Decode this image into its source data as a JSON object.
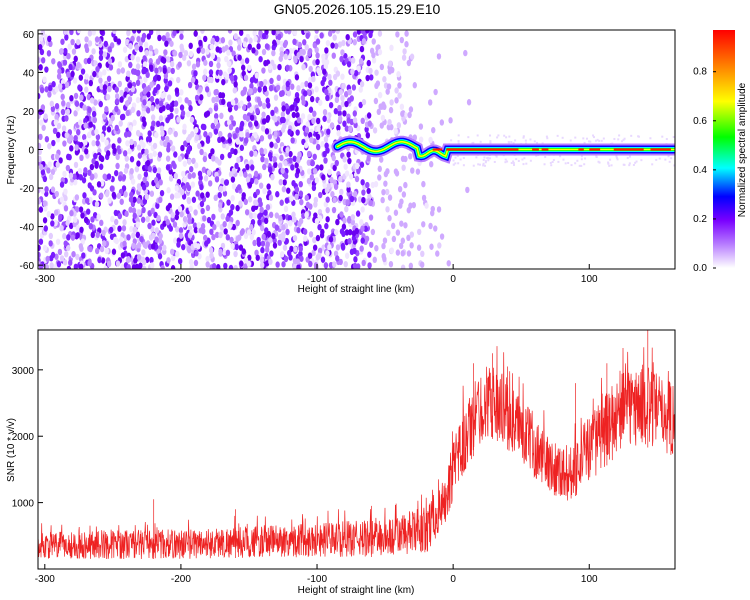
{
  "chart_data": [
    {
      "type": "heatmap",
      "title": "GN05.2026.105.15.29.E10",
      "xlabel": "Height of straight line (km)",
      "ylabel": "Frequency (Hz)",
      "xlim": [
        -305,
        163
      ],
      "ylim": [
        -62,
        62
      ],
      "xticks": [
        -300,
        -200,
        -100,
        0,
        100
      ],
      "yticks": [
        -60,
        -40,
        -20,
        0,
        20,
        40,
        60
      ],
      "colorbar": {
        "label": "Normalized spectral amplitude",
        "range": [
          0,
          0.97
        ],
        "ticks": [
          0.0,
          0.2,
          0.4,
          0.6,
          0.8
        ],
        "colormap": [
          "#ffffff",
          "#b77cff",
          "#7a00ff",
          "#0000ff",
          "#00ffff",
          "#00ff00",
          "#ffff00",
          "#ff8000",
          "#ff0000"
        ]
      },
      "description_regions": [
        {
          "x_range": [
            -305,
            -15
          ],
          "freq_range": [
            -62,
            62
          ],
          "amplitude": "low noise (0.05-0.25)"
        },
        {
          "x_range": [
            -90,
            163
          ],
          "freq_center": [
            3,
            0
          ],
          "amplitude": "strong narrow band (0.3-0.97)"
        }
      ]
    },
    {
      "type": "line",
      "xlabel": "Height of straight line (km)",
      "ylabel": "SNR (10 * v/v)",
      "xlim": [
        -305,
        163
      ],
      "ylim": [
        0,
        3600
      ],
      "xticks": [
        -300,
        -200,
        -100,
        0,
        100
      ],
      "yticks": [
        1000,
        2000,
        3000
      ],
      "series": [
        {
          "color": "#ee2222",
          "envelope": {
            "x": [
              -305,
              -250,
              -200,
              -150,
              -100,
              -50,
              -20,
              -5,
              5,
              15,
              25,
              35,
              50,
              70,
              85,
              95,
              110,
              125,
              140,
              155,
              163
            ],
            "lo": [
              150,
              150,
              150,
              170,
              180,
              180,
              230,
              700,
              1200,
              1700,
              2000,
              1900,
              1600,
              1150,
              1000,
              1200,
              1500,
              1800,
              1850,
              1750,
              1700
            ],
            "hi": [
              550,
              600,
              600,
              650,
              700,
              750,
              950,
              1400,
              2300,
              2800,
              3100,
              3000,
              2600,
              2000,
              1850,
              2200,
              2600,
              3000,
              3100,
              2900,
              2850
            ],
            "spikes": [
              [
                -220,
                1050
              ],
              [
                -160,
                900
              ],
              [
                -60,
                950
              ],
              [
                15,
                3100
              ],
              [
                29,
                3250
              ],
              [
                40,
                3050
              ],
              [
                90,
                2800
              ],
              [
                113,
                3100
              ],
              [
                143,
                3600
              ],
              [
                160,
                2750
              ]
            ]
          }
        }
      ]
    }
  ]
}
